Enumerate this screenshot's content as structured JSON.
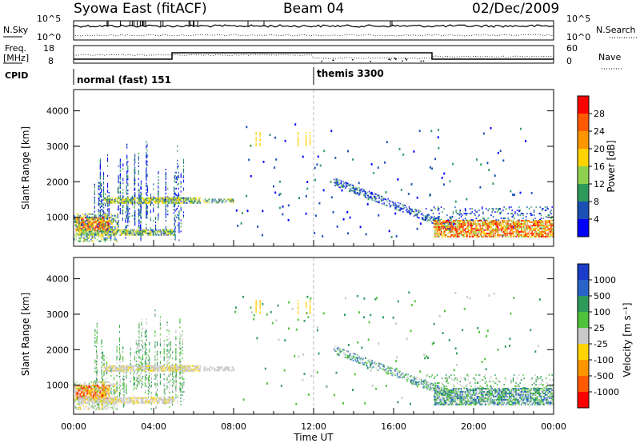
{
  "header": {
    "station": "Syowa East (fitACF)",
    "beam": "Beam 04",
    "date": "02/Dec/2009"
  },
  "top_panels": {
    "nsky_label": "N.Sky",
    "nsky_ticks": [
      "10^5",
      "10^0"
    ],
    "nsearch_label": "N.Search",
    "nsearch_ticks": [
      "10^5",
      "10^0"
    ],
    "freq_label_1": "Freq.",
    "freq_label_2": "[MHz]",
    "freq_ticks": [
      "18",
      "8"
    ],
    "nave_label": "Nave",
    "nave_ticks": [
      "60",
      "0"
    ],
    "cpid_label": "CPID",
    "cpid_modes": [
      {
        "label": "normal (fast) 151",
        "start_hour": 0
      },
      {
        "label": "themis 3300",
        "start_hour": 12
      }
    ]
  },
  "chart_data": [
    {
      "type": "heatmap",
      "name": "power",
      "ylabel": "Slant Range [km]",
      "xlabel": "",
      "x_ticks": [
        "00:00",
        "04:00",
        "08:00",
        "12:00",
        "16:00",
        "20:00",
        "00:00"
      ],
      "xlim_hours": [
        0,
        24
      ],
      "ylim_km": [
        180,
        4600
      ],
      "y_ticks": [
        1000,
        2000,
        3000,
        4000
      ],
      "colorbar": {
        "label": "Power [dB]",
        "ticks": [
          "28",
          "24",
          "20",
          "16",
          "12",
          "8",
          "4"
        ],
        "colors": [
          "#ff0000",
          "#ff5a00",
          "#ff9600",
          "#ffd200",
          "#8fd14f",
          "#2e9a5a",
          "#1a50b4",
          "#0000ff"
        ]
      },
      "features": [
        {
          "hours": [
            0.0,
            1.8
          ],
          "km": [
            600,
            1000
          ],
          "level": "high"
        },
        {
          "hours": [
            1.5,
            6.3
          ],
          "km": [
            1400,
            1550
          ],
          "level": "mid"
        },
        {
          "hours": [
            0.2,
            5.0
          ],
          "km": [
            500,
            600
          ],
          "level": "mid"
        },
        {
          "hours": [
            6.5,
            8.0
          ],
          "km": [
            1400,
            1500
          ],
          "level": "mid"
        },
        {
          "hours": [
            13.0,
            19.0
          ],
          "km": [
            700,
            2000
          ],
          "level": "low"
        },
        {
          "hours": [
            18.0,
            24.0
          ],
          "km": [
            450,
            900
          ],
          "level": "high"
        }
      ]
    },
    {
      "type": "heatmap",
      "name": "velocity",
      "ylabel": "Slant Range [km]",
      "xlabel": "Time UT",
      "x_ticks": [
        "00:00",
        "04:00",
        "08:00",
        "12:00",
        "16:00",
        "20:00",
        "00:00"
      ],
      "xlim_hours": [
        0,
        24
      ],
      "ylim_km": [
        180,
        4600
      ],
      "y_ticks": [
        1000,
        2000,
        3000,
        4000
      ],
      "colorbar": {
        "label": "Velocity [m s⁻¹]",
        "ticks": [
          "1000",
          "500",
          "100",
          "25",
          "-25",
          "-100",
          "-500",
          "-1000"
        ],
        "colors": [
          "#1a3cc8",
          "#2864c8",
          "#2e9a5a",
          "#4ec23a",
          "#c8c8c8",
          "#ffd200",
          "#ff9600",
          "#ff5a00",
          "#ff0000"
        ]
      },
      "features": [
        {
          "hours": [
            0.0,
            1.8
          ],
          "km": [
            600,
            1000
          ],
          "level": "negative"
        },
        {
          "hours": [
            1.5,
            8.0
          ],
          "km": [
            1350,
            1550
          ],
          "level": "near-zero"
        },
        {
          "hours": [
            1.5,
            5.0
          ],
          "km": [
            450,
            650
          ],
          "level": "near-zero"
        },
        {
          "hours": [
            13.0,
            19.0
          ],
          "km": [
            700,
            2000
          ],
          "level": "positive"
        },
        {
          "hours": [
            18.0,
            24.0
          ],
          "km": [
            450,
            800
          ],
          "level": "positive"
        }
      ]
    }
  ]
}
